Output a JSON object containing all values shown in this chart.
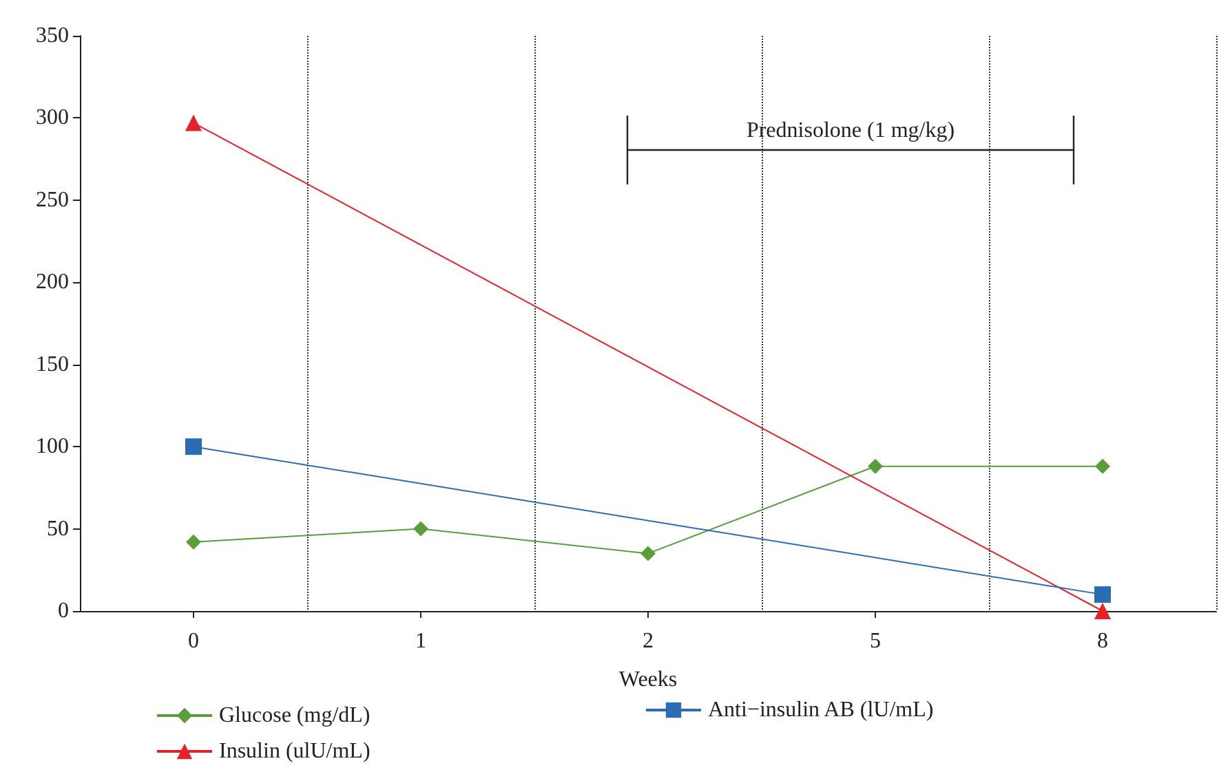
{
  "chart_data": {
    "type": "line",
    "xlabel": "Weeks",
    "categories": [
      "0",
      "1",
      "2",
      "5",
      "8"
    ],
    "series": [
      {
        "name": "Glucose (mg/dL)",
        "color": "#5a9e3c",
        "marker": "diamond",
        "values": [
          42,
          50,
          35,
          88,
          88
        ]
      },
      {
        "name": "Insulin (ulU/mL)",
        "color": "#e8202a",
        "marker": "triangle",
        "values": [
          297,
          null,
          null,
          null,
          0
        ]
      },
      {
        "name": "Anti−insulin AB (lU/mL)",
        "color": "#2a6db5",
        "marker": "square",
        "values": [
          100,
          null,
          null,
          null,
          10
        ]
      }
    ],
    "ylim": [
      0,
      350
    ],
    "yticks": [
      0,
      50,
      100,
      150,
      200,
      250,
      300,
      350
    ],
    "grid": "x",
    "legend": "bottom",
    "annotations": [
      "Prednisolone (1 mg/kg)"
    ]
  }
}
